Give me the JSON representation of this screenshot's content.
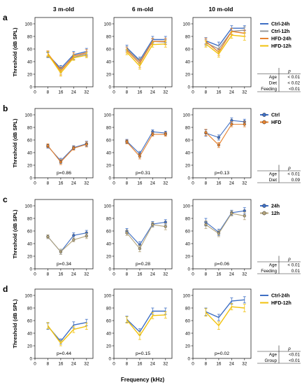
{
  "figure": {
    "ylabel": "Threshold (dB SPL)",
    "xlabel": "Frequency (kHz)",
    "column_titles": [
      "3 m-old",
      "6 m-old",
      "10 m-old"
    ]
  },
  "colors": {
    "Ctrl-24h": "#3f6fc4",
    "Ctrl-12h": "#9a9a9a",
    "HFD-24h": "#e6822e",
    "HFD-12h": "#f2c20c",
    "Ctrl": "#3f6fc4",
    "HFD": "#e6822e",
    "24h": "#3f6fc4",
    "12h": "#b3a37a"
  },
  "chart_data": [
    {
      "panel": "a",
      "type": "line",
      "x": [
        8,
        16,
        24,
        32
      ],
      "xticks": [
        0,
        8,
        16,
        24,
        32
      ],
      "yticks": [
        0,
        20,
        40,
        60,
        80,
        100
      ],
      "ylim": [
        0,
        110
      ],
      "xlim": [
        0,
        36
      ],
      "legend": [
        "Ctrl-24h",
        "Ctrl-12h",
        "HFD-24h",
        "HFD-12h"
      ],
      "marker": "none",
      "subplots": [
        {
          "title": "3 m-old",
          "series": [
            {
              "name": "Ctrl-24h",
              "values": [
                51,
                29,
                51,
                56
              ],
              "err": [
                4,
                5,
                5,
                5
              ]
            },
            {
              "name": "Ctrl-12h",
              "values": [
                50,
                27,
                47,
                52
              ],
              "err": [
                4,
                5,
                4,
                4
              ]
            },
            {
              "name": "HFD-24h",
              "values": [
                53,
                25,
                49,
                54
              ],
              "err": [
                4,
                6,
                5,
                5
              ]
            },
            {
              "name": "HFD-12h",
              "values": [
                52,
                22,
                46,
                50
              ],
              "err": [
                4,
                5,
                4,
                4
              ]
            }
          ]
        },
        {
          "title": "6 m-old",
          "series": [
            {
              "name": "Ctrl-24h",
              "values": [
                62,
                42,
                75,
                75
              ],
              "err": [
                4,
                5,
                5,
                5
              ]
            },
            {
              "name": "Ctrl-12h",
              "values": [
                60,
                40,
                72,
                71
              ],
              "err": [
                4,
                5,
                4,
                4
              ]
            },
            {
              "name": "HFD-24h",
              "values": [
                58,
                37,
                72,
                72
              ],
              "err": [
                4,
                6,
                5,
                5
              ]
            },
            {
              "name": "HFD-12h",
              "values": [
                55,
                33,
                67,
                68
              ],
              "err": [
                4,
                5,
                4,
                5
              ]
            }
          ]
        },
        {
          "title": "10 m-old",
          "series": [
            {
              "name": "Ctrl-24h",
              "values": [
                73,
                65,
                93,
                93
              ],
              "err": [
                5,
                6,
                4,
                4
              ]
            },
            {
              "name": "Ctrl-12h",
              "values": [
                70,
                60,
                88,
                90
              ],
              "err": [
                5,
                6,
                5,
                5
              ]
            },
            {
              "name": "HFD-24h",
              "values": [
                72,
                55,
                88,
                85
              ],
              "err": [
                5,
                5,
                5,
                5
              ]
            },
            {
              "name": "HFD-12h",
              "values": [
                68,
                52,
                82,
                80
              ],
              "err": [
                5,
                5,
                5,
                6
              ]
            }
          ]
        }
      ],
      "stats_table": {
        "header": "p",
        "rows": [
          [
            "Age",
            "< 0.01"
          ],
          [
            "Diet",
            "< 0.02"
          ],
          [
            "Feeding",
            "<0.01"
          ]
        ]
      }
    },
    {
      "panel": "b",
      "type": "line",
      "x": [
        8,
        16,
        24,
        32
      ],
      "xticks": [
        0,
        8,
        16,
        24,
        32
      ],
      "yticks": [
        0,
        20,
        40,
        60,
        80,
        100
      ],
      "ylim": [
        0,
        110
      ],
      "xlim": [
        0,
        36
      ],
      "legend": [
        "Ctrl",
        "HFD"
      ],
      "marker": "circle",
      "subplots": [
        {
          "title": "3 m-old",
          "annotation": "p=0.86",
          "series": [
            {
              "name": "Ctrl",
              "values": [
                50,
                27,
                48,
                54
              ],
              "err": [
                3,
                4,
                3,
                4
              ]
            },
            {
              "name": "HFD",
              "values": [
                51,
                25,
                47,
                53
              ],
              "err": [
                3,
                4,
                3,
                4
              ]
            }
          ]
        },
        {
          "title": "6 m-old",
          "annotation": "p=0.31",
          "series": [
            {
              "name": "Ctrl",
              "values": [
                58,
                38,
                73,
                71
              ],
              "err": [
                3,
                4,
                3,
                3
              ]
            },
            {
              "name": "HFD",
              "values": [
                57,
                34,
                69,
                69
              ],
              "err": [
                3,
                4,
                3,
                3
              ]
            }
          ]
        },
        {
          "title": "10 m-old",
          "annotation": "p=0.13",
          "series": [
            {
              "name": "Ctrl",
              "values": [
                71,
                64,
                91,
                89
              ],
              "err": [
                5,
                4,
                4,
                4
              ]
            },
            {
              "name": "HFD",
              "values": [
                72,
                52,
                85,
                85
              ],
              "err": [
                5,
                4,
                4,
                4
              ]
            }
          ]
        }
      ],
      "stats_table": {
        "header": "p",
        "rows": [
          [
            "Age",
            "< 0.01"
          ],
          [
            "Diet",
            "0.09"
          ]
        ]
      }
    },
    {
      "panel": "c",
      "type": "line",
      "x": [
        8,
        16,
        24,
        32
      ],
      "xticks": [
        0,
        8,
        16,
        24,
        32
      ],
      "yticks": [
        0,
        20,
        40,
        60,
        80,
        100
      ],
      "ylim": [
        0,
        110
      ],
      "xlim": [
        0,
        36
      ],
      "legend": [
        "24h",
        "12h"
      ],
      "marker": "circle",
      "subplots": [
        {
          "title": "3 m-old",
          "annotation": "p=0.34",
          "series": [
            {
              "name": "24h",
              "values": [
                51,
                27,
                53,
                57
              ],
              "err": [
                3,
                4,
                4,
                4
              ]
            },
            {
              "name": "12h",
              "values": [
                51,
                27,
                46,
                52
              ],
              "err": [
                3,
                4,
                3,
                4
              ]
            }
          ]
        },
        {
          "title": "6 m-old",
          "annotation": "p=0.28",
          "series": [
            {
              "name": "24h",
              "values": [
                60,
                38,
                71,
                74
              ],
              "err": [
                4,
                5,
                4,
                4
              ]
            },
            {
              "name": "12h",
              "values": [
                57,
                32,
                70,
                67
              ],
              "err": [
                4,
                5,
                4,
                5
              ]
            }
          ]
        },
        {
          "title": "10 m-old",
          "annotation": "p=0.06",
          "series": [
            {
              "name": "24h",
              "values": [
                74,
                58,
                89,
                92
              ],
              "err": [
                6,
                5,
                4,
                5
              ]
            },
            {
              "name": "12h",
              "values": [
                70,
                56,
                88,
                84
              ],
              "err": [
                6,
                5,
                4,
                6
              ]
            }
          ]
        }
      ],
      "stats_table": {
        "header": "p",
        "rows": [
          [
            "Age",
            "< 0.01"
          ],
          [
            "Feeding",
            "0.01"
          ]
        ]
      }
    },
    {
      "panel": "d",
      "type": "line",
      "x": [
        8,
        16,
        24,
        32
      ],
      "xticks": [
        0,
        8,
        16,
        24,
        32
      ],
      "yticks": [
        0,
        20,
        40,
        60,
        80,
        100
      ],
      "ylim": [
        0,
        110
      ],
      "xlim": [
        0,
        36
      ],
      "legend": [
        "Ctrl-24h",
        "HFD-12h"
      ],
      "marker": "none",
      "subplots": [
        {
          "title": "3 m-old",
          "annotation": "p=0.44",
          "series": [
            {
              "name": "Ctrl-24h",
              "values": [
                51,
                27,
                53,
                57
              ],
              "err": [
                5,
                4,
                5,
                5
              ]
            },
            {
              "name": "HFD-12h",
              "values": [
                52,
                24,
                46,
                51
              ],
              "err": [
                5,
                4,
                5,
                5
              ]
            }
          ]
        },
        {
          "title": "6 m-old",
          "annotation": "p=0.15",
          "series": [
            {
              "name": "Ctrl-24h",
              "values": [
                62,
                42,
                75,
                75
              ],
              "err": [
                5,
                5,
                5,
                5
              ]
            },
            {
              "name": "HFD-12h",
              "values": [
                61,
                36,
                68,
                69
              ],
              "err": [
                5,
                6,
                5,
                5
              ]
            }
          ]
        },
        {
          "title": "10 m-old",
          "annotation": "p=0.02",
          "series": [
            {
              "name": "Ctrl-24h",
              "values": [
                74,
                65,
                91,
                93
              ],
              "err": [
                6,
                5,
                5,
                5
              ]
            },
            {
              "name": "HFD-12h",
              "values": [
                73,
                52,
                82,
                80
              ],
              "err": [
                6,
                6,
                5,
                6
              ]
            }
          ]
        }
      ],
      "stats_table": {
        "header": "p",
        "rows": [
          [
            "Age",
            "<0.01"
          ],
          [
            "Group",
            "<0.01"
          ]
        ]
      }
    }
  ]
}
